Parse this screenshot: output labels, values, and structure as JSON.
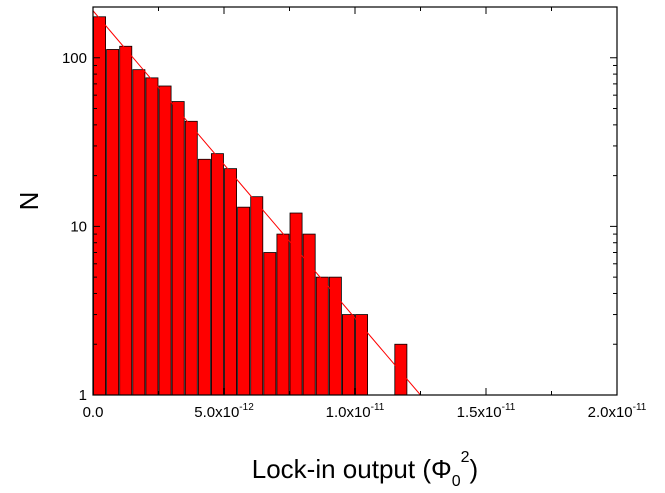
{
  "chart_data": {
    "type": "bar",
    "xlabel_parts": {
      "prefix": "Lock-in output (",
      "symbol": "Φ",
      "sub": "0",
      "sup": "2",
      "suffix": ")"
    },
    "ylabel": "N",
    "yscale": "log",
    "ylim": [
      1,
      200
    ],
    "xlim": [
      0,
      2e-11
    ],
    "x_ticks": [
      {
        "value": 0,
        "mantissa": "0.0",
        "exp": ""
      },
      {
        "value": 5e-12,
        "mantissa": "5.0x10",
        "exp": "-12"
      },
      {
        "value": 1e-11,
        "mantissa": "1.0x10",
        "exp": "-11"
      },
      {
        "value": 1.5e-11,
        "mantissa": "1.5x10",
        "exp": "-11"
      },
      {
        "value": 2e-11,
        "mantissa": "2.0x10",
        "exp": "-11"
      }
    ],
    "y_ticks": [
      {
        "value": 1,
        "label": "1"
      },
      {
        "value": 10,
        "label": "10"
      },
      {
        "value": 100,
        "label": "100"
      }
    ],
    "bin_width": 5e-13,
    "bars": [
      {
        "x": 0.0,
        "count": 175
      },
      {
        "x": 5e-13,
        "count": 112
      },
      {
        "x": 1e-12,
        "count": 117
      },
      {
        "x": 1.5e-12,
        "count": 85
      },
      {
        "x": 2e-12,
        "count": 76
      },
      {
        "x": 2.5e-12,
        "count": 68
      },
      {
        "x": 3e-12,
        "count": 55
      },
      {
        "x": 3.5e-12,
        "count": 42
      },
      {
        "x": 4e-12,
        "count": 25
      },
      {
        "x": 4.5e-12,
        "count": 27
      },
      {
        "x": 5e-12,
        "count": 22
      },
      {
        "x": 5.5e-12,
        "count": 13
      },
      {
        "x": 6e-12,
        "count": 15
      },
      {
        "x": 6.5e-12,
        "count": 7
      },
      {
        "x": 7e-12,
        "count": 9
      },
      {
        "x": 7.5e-12,
        "count": 12
      },
      {
        "x": 8e-12,
        "count": 9
      },
      {
        "x": 8.5e-12,
        "count": 5
      },
      {
        "x": 9e-12,
        "count": 5
      },
      {
        "x": 9.5e-12,
        "count": 3
      },
      {
        "x": 1e-11,
        "count": 3
      },
      {
        "x": 1.05e-11,
        "count": 0
      },
      {
        "x": 1.1e-11,
        "count": 0
      },
      {
        "x": 1.15e-11,
        "count": 2
      }
    ],
    "fit_line": {
      "type": "exponential",
      "points": [
        {
          "x": 0.0,
          "y": 190
        },
        {
          "x": 1.25e-11,
          "y": 1
        }
      ]
    },
    "bar_color": "#ff0000",
    "bar_edge_color": "#000000",
    "fit_color": "#ff0000",
    "grid": false
  }
}
